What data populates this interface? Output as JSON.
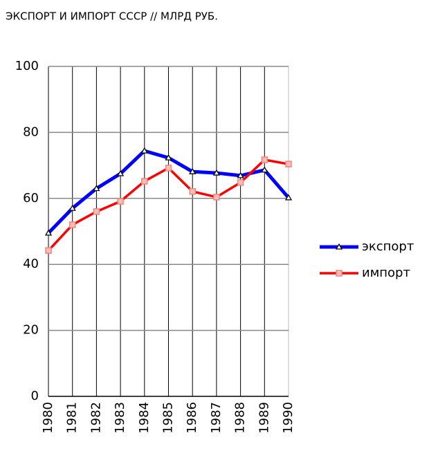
{
  "chart_data": {
    "type": "line",
    "title": "ЭКСПОРТ И ИМПОРТ СССР // МЛРД РУБ.",
    "categories": [
      "1980",
      "1981",
      "1982",
      "1983",
      "1984",
      "1985",
      "1986",
      "1987",
      "1988",
      "1989",
      "1990"
    ],
    "series": [
      {
        "name": "экспорт",
        "color": "#0000ff",
        "values": [
          49.5,
          57,
          63,
          67.5,
          74.4,
          72.3,
          68.1,
          67.7,
          66.9,
          68.6,
          60.2
        ]
      },
      {
        "name": "импорт",
        "color": "#ff0000",
        "values": [
          44.2,
          52,
          56,
          59.1,
          65.2,
          69.2,
          62.1,
          60.4,
          64.8,
          71.7,
          70.4
        ]
      }
    ],
    "ylim": [
      0,
      100
    ],
    "yticks": [
      0,
      20,
      40,
      60,
      80,
      100
    ],
    "grid": true,
    "legend": "right"
  }
}
